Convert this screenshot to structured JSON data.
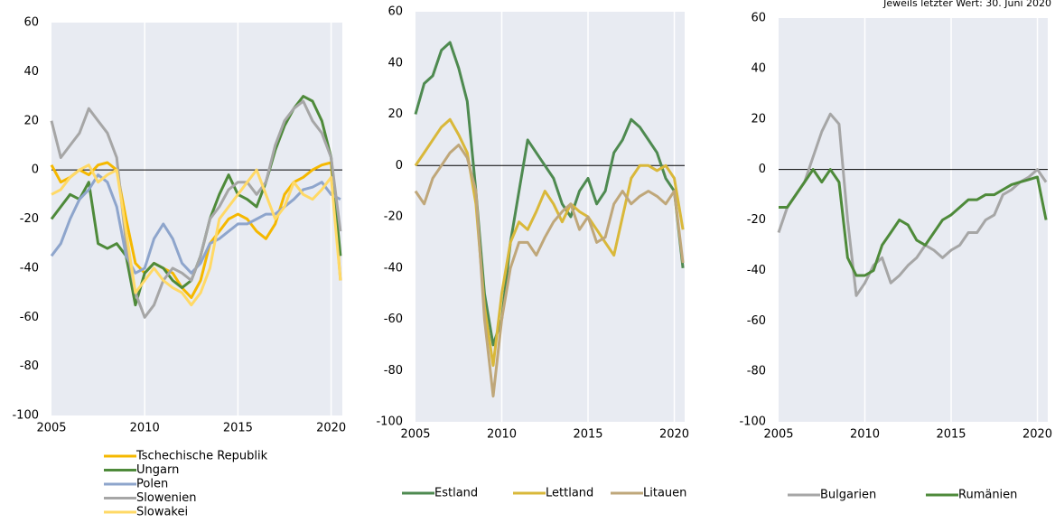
{
  "chart_data": [
    {
      "type": "line",
      "x": [
        2005,
        2005.5,
        2006,
        2006.5,
        2007,
        2007.5,
        2008,
        2008.5,
        2009,
        2009.5,
        2010,
        2010.5,
        2011,
        2011.5,
        2012,
        2012.5,
        2013,
        2013.5,
        2014,
        2014.5,
        2015,
        2015.5,
        2016,
        2016.5,
        2017,
        2017.5,
        2018,
        2018.5,
        2019,
        2019.5,
        2020,
        2020.5
      ],
      "xlim": [
        2005,
        2020.6
      ],
      "xticks": [
        2005,
        2010,
        2015,
        2020
      ],
      "ylim": [
        -100,
        60
      ],
      "yticks": [
        -100,
        -80,
        -60,
        -40,
        -20,
        0,
        20,
        40,
        60
      ],
      "grid": true,
      "legend": "bottom-vertical",
      "series": [
        {
          "name": "Tschechische Republik",
          "color": "#f5b800",
          "values": [
            2,
            -5,
            -3,
            0,
            -2,
            2,
            3,
            0,
            -20,
            -38,
            -42,
            -38,
            -40,
            -42,
            -48,
            -52,
            -45,
            -30,
            -25,
            -20,
            -18,
            -20,
            -25,
            -28,
            -22,
            -10,
            -5,
            -3,
            0,
            2,
            3,
            -45
          ]
        },
        {
          "name": "Ungarn",
          "color": "#4e8a3a",
          "values": [
            -20,
            -15,
            -10,
            -12,
            -5,
            -30,
            -32,
            -30,
            -35,
            -55,
            -42,
            -38,
            -40,
            -45,
            -48,
            -45,
            -35,
            -20,
            -10,
            -2,
            -10,
            -12,
            -15,
            -5,
            8,
            18,
            25,
            30,
            28,
            20,
            5,
            -35
          ]
        },
        {
          "name": "Polen",
          "color": "#8ea5cc",
          "values": [
            -35,
            -30,
            -20,
            -12,
            -8,
            -2,
            -5,
            -15,
            -35,
            -42,
            -40,
            -28,
            -22,
            -28,
            -38,
            -42,
            -38,
            -30,
            -28,
            -25,
            -22,
            -22,
            -20,
            -18,
            -18,
            -15,
            -12,
            -8,
            -7,
            -5,
            -10,
            -12
          ]
        },
        {
          "name": "Slowenien",
          "color": "#a6a6a6",
          "values": [
            20,
            5,
            10,
            15,
            25,
            20,
            15,
            5,
            -30,
            -50,
            -60,
            -55,
            -45,
            -40,
            -42,
            -45,
            -35,
            -20,
            -15,
            -8,
            -5,
            -5,
            -10,
            -5,
            10,
            20,
            25,
            28,
            20,
            15,
            5,
            -25
          ]
        },
        {
          "name": "Slowakei",
          "color": "#ffd966",
          "values": [
            -10,
            -8,
            -3,
            0,
            2,
            -5,
            -2,
            0,
            -25,
            -50,
            -45,
            -40,
            -45,
            -48,
            -50,
            -55,
            -50,
            -40,
            -20,
            -15,
            -10,
            -5,
            0,
            -10,
            -20,
            -15,
            -5,
            -10,
            -12,
            -8,
            -3,
            -45
          ]
        }
      ]
    },
    {
      "type": "line",
      "x": [
        2005,
        2005.5,
        2006,
        2006.5,
        2007,
        2007.5,
        2008,
        2008.5,
        2009,
        2009.5,
        2010,
        2010.5,
        2011,
        2011.5,
        2012,
        2012.5,
        2013,
        2013.5,
        2014,
        2014.5,
        2015,
        2015.5,
        2016,
        2016.5,
        2017,
        2017.5,
        2018,
        2018.5,
        2019,
        2019.5,
        2020,
        2020.5
      ],
      "xlim": [
        2005,
        2020.6
      ],
      "xticks": [
        2005,
        2010,
        2015,
        2020
      ],
      "ylim": [
        -100,
        60
      ],
      "yticks": [
        -100,
        -80,
        -60,
        -40,
        -20,
        0,
        20,
        40,
        60
      ],
      "grid": true,
      "legend": "bottom-horizontal",
      "series": [
        {
          "name": "Estland",
          "color": "#4e8a50",
          "values": [
            20,
            32,
            35,
            45,
            48,
            38,
            25,
            -10,
            -50,
            -70,
            -60,
            -30,
            -10,
            10,
            5,
            0,
            -5,
            -15,
            -20,
            -10,
            -5,
            -15,
            -10,
            5,
            10,
            18,
            15,
            10,
            5,
            -5,
            -10,
            -40
          ]
        },
        {
          "name": "Lettland",
          "color": "#d9b83a",
          "values": [
            0,
            5,
            10,
            15,
            18,
            12,
            5,
            -15,
            -55,
            -78,
            -50,
            -30,
            -22,
            -25,
            -18,
            -10,
            -15,
            -22,
            -15,
            -18,
            -20,
            -25,
            -30,
            -35,
            -20,
            -5,
            0,
            0,
            -2,
            0,
            -5,
            -25
          ]
        },
        {
          "name": "Litauen",
          "color": "#bfa77a",
          "values": [
            -10,
            -15,
            -5,
            0,
            5,
            8,
            3,
            -10,
            -60,
            -90,
            -60,
            -40,
            -30,
            -30,
            -35,
            -28,
            -22,
            -18,
            -15,
            -25,
            -20,
            -30,
            -28,
            -15,
            -10,
            -15,
            -12,
            -10,
            -12,
            -15,
            -10,
            -38
          ]
        }
      ]
    },
    {
      "type": "line",
      "note": "Jeweils letzter  Wert: 30. Juni 2020",
      "x": [
        2005,
        2005.5,
        2006,
        2006.5,
        2007,
        2007.5,
        2008,
        2008.5,
        2009,
        2009.5,
        2010,
        2010.5,
        2011,
        2011.5,
        2012,
        2012.5,
        2013,
        2013.5,
        2014,
        2014.5,
        2015,
        2015.5,
        2016,
        2016.5,
        2017,
        2017.5,
        2018,
        2018.5,
        2019,
        2019.5,
        2020,
        2020.5
      ],
      "xlim": [
        2005,
        2020.6
      ],
      "xticks": [
        2005,
        2010,
        2015,
        2020
      ],
      "ylim": [
        -100,
        60
      ],
      "yticks": [
        -100,
        -80,
        -60,
        -40,
        -20,
        0,
        20,
        40,
        60
      ],
      "grid": true,
      "legend": "bottom-horizontal",
      "series": [
        {
          "name": "Bulgarien",
          "color": "#a6a6a6",
          "values": [
            -25,
            -15,
            -10,
            -5,
            5,
            15,
            22,
            18,
            -20,
            -50,
            -45,
            -38,
            -35,
            -45,
            -42,
            -38,
            -35,
            -30,
            -32,
            -35,
            -32,
            -30,
            -25,
            -25,
            -20,
            -18,
            -10,
            -8,
            -5,
            -3,
            0,
            -5
          ]
        },
        {
          "name": "Rumänien",
          "color": "#4e8a3a",
          "values": [
            -15,
            -15,
            -10,
            -5,
            0,
            -5,
            0,
            -5,
            -35,
            -42,
            -42,
            -40,
            -30,
            -25,
            -20,
            -22,
            -28,
            -30,
            -25,
            -20,
            -18,
            -15,
            -12,
            -12,
            -10,
            -10,
            -8,
            -6,
            -5,
            -4,
            -3,
            -20
          ]
        }
      ]
    }
  ]
}
